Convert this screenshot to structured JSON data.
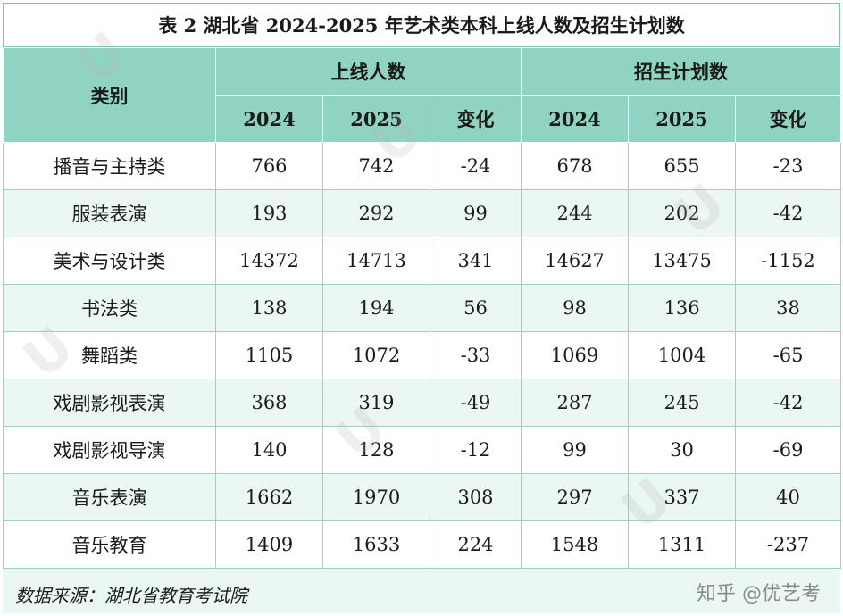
{
  "title": "表 2  湖北省 2024-2025 年艺术类本科上线人数及招生计划数",
  "headers": {
    "category": "类别",
    "group1": "上线人数",
    "group2": "招生计划数",
    "sub": [
      "2024",
      "2025",
      "变化",
      "2024",
      "2025",
      "变化"
    ]
  },
  "rows": [
    {
      "name": "播音与主持类",
      "cells": [
        "766",
        "742",
        "-24",
        "678",
        "655",
        "-23"
      ]
    },
    {
      "name": "服装表演",
      "cells": [
        "193",
        "292",
        "99",
        "244",
        "202",
        "-42"
      ]
    },
    {
      "name": "美术与设计类",
      "cells": [
        "14372",
        "14713",
        "341",
        "14627",
        "13475",
        "-1152"
      ]
    },
    {
      "name": "书法类",
      "cells": [
        "138",
        "194",
        "56",
        "98",
        "136",
        "38"
      ]
    },
    {
      "name": "舞蹈类",
      "cells": [
        "1105",
        "1072",
        "-33",
        "1069",
        "1004",
        "-65"
      ]
    },
    {
      "name": "戏剧影视表演",
      "cells": [
        "368",
        "319",
        "-49",
        "287",
        "245",
        "-42"
      ]
    },
    {
      "name": "戏剧影视导演",
      "cells": [
        "140",
        "128",
        "-12",
        "99",
        "30",
        "-69"
      ]
    },
    {
      "name": "音乐表演",
      "cells": [
        "1662",
        "1970",
        "308",
        "297",
        "337",
        "40"
      ]
    },
    {
      "name": "音乐教育",
      "cells": [
        "1409",
        "1633",
        "224",
        "1548",
        "1311",
        "-237"
      ]
    }
  ],
  "footer": {
    "source": "数据来源：湖北省教育考试院",
    "brand": "知乎 @优艺考"
  },
  "colors": {
    "header_bg": "#8fd3c0",
    "stripe_bg": "#eaf7f2",
    "border": "#7fc3b1"
  }
}
